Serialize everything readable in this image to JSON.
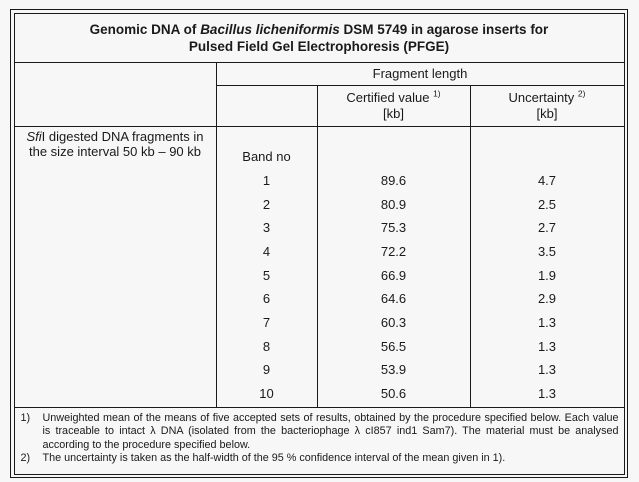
{
  "title": {
    "line1_prefix": "Genomic DNA of ",
    "line1_species": "Bacillus licheniformis",
    "line1_suffix": " DSM 5749 in agarose inserts for",
    "line2": "Pulsed Field Gel Electrophoresis (PFGE)"
  },
  "table": {
    "group_header": "Fragment length",
    "col_certified": {
      "label": "Certified value",
      "sup": "1)",
      "unit": "[kb]"
    },
    "col_uncertainty": {
      "label": "Uncertainty",
      "sup": "2)",
      "unit": "[kb]"
    },
    "row_label": {
      "line1_italic": "Sfi",
      "line1_rest": "I digested DNA fragments in",
      "line2": "the size interval 50 kb – 90 kb"
    },
    "band_header": "Band no",
    "rows": [
      {
        "band": "1",
        "value": "89.6",
        "uncertainty": "4.7"
      },
      {
        "band": "2",
        "value": "80.9",
        "uncertainty": "2.5"
      },
      {
        "band": "3",
        "value": "75.3",
        "uncertainty": "2.7"
      },
      {
        "band": "4",
        "value": "72.2",
        "uncertainty": "3.5"
      },
      {
        "band": "5",
        "value": "66.9",
        "uncertainty": "1.9"
      },
      {
        "band": "6",
        "value": "64.6",
        "uncertainty": "2.9"
      },
      {
        "band": "7",
        "value": "60.3",
        "uncertainty": "1.3"
      },
      {
        "band": "8",
        "value": "56.5",
        "uncertainty": "1.3"
      },
      {
        "band": "9",
        "value": "53.9",
        "uncertainty": "1.3"
      },
      {
        "band": "10",
        "value": "50.6",
        "uncertainty": "1.3"
      }
    ]
  },
  "footnotes": [
    {
      "marker": "1)",
      "text": "Unweighted mean of the means of five accepted sets of results, obtained by the procedure specified below. Each value is traceable to intact λ DNA (isolated from the bacteriophage λ cI857 ind1 Sam7). The material must be analysed according to the procedure specified below."
    },
    {
      "marker": "2)",
      "text": "The uncertainty is taken as the half-width of the 95 % confidence interval of the mean given in 1)."
    }
  ]
}
